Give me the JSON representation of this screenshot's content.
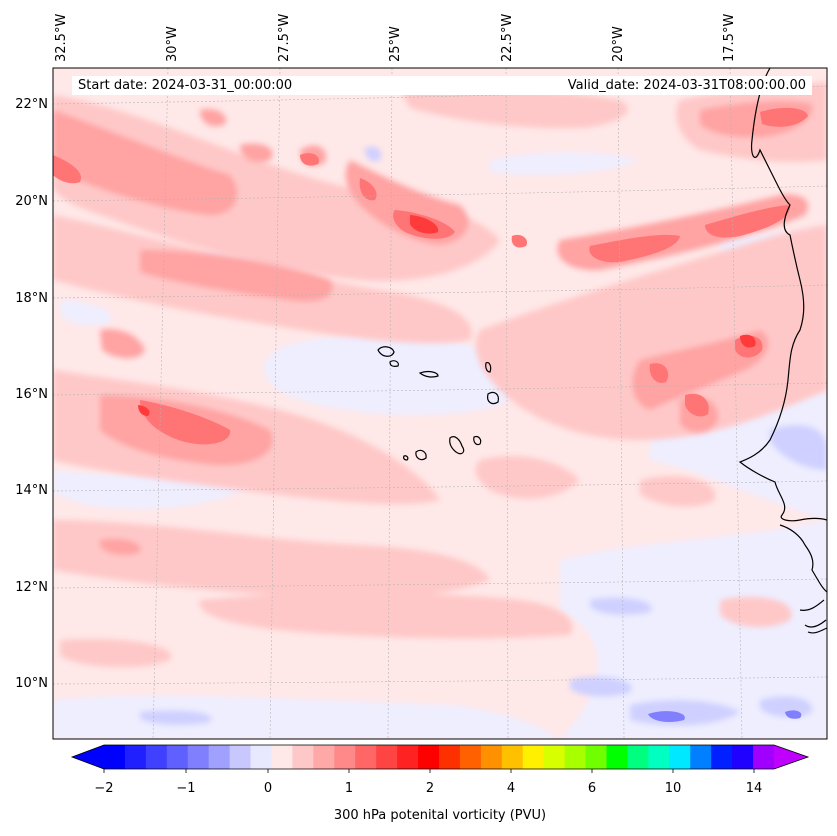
{
  "header": {
    "start_date": "Start date: 2024-03-31_00:00:00",
    "valid_date": "Valid_date: 2024-03-31T08:00:00.00"
  },
  "axes": {
    "lon_labels": [
      "32.5°W",
      "30°W",
      "27.5°W",
      "25°W",
      "22.5°W",
      "20°W",
      "17.5°W"
    ],
    "lat_labels": [
      "22°N",
      "20°N",
      "18°N",
      "16°N",
      "14°N",
      "12°N",
      "10°N"
    ],
    "gridlines": true
  },
  "colorbar": {
    "title": "300 hPa potenital vorticity (PVU)",
    "tick_labels": [
      "−2",
      "−1",
      "0",
      "1",
      "2",
      "4",
      "6",
      "10",
      "14"
    ],
    "levels": [
      -2,
      -1.75,
      -1.5,
      -1.25,
      -1,
      -0.75,
      -0.5,
      -0.25,
      0,
      0.25,
      0.5,
      0.75,
      1,
      1.25,
      1.5,
      1.75,
      2,
      2.5,
      3,
      3.5,
      4,
      4.5,
      5,
      5.5,
      6,
      7,
      8,
      9,
      10,
      11,
      12,
      13,
      14
    ],
    "colors": [
      "#0000ff",
      "#2020ff",
      "#4040ff",
      "#6060ff",
      "#8080ff",
      "#a0a0ff",
      "#c8c8ff",
      "#e8e8ff",
      "#ffe8e8",
      "#ffc8c8",
      "#ffa8a8",
      "#ff8888",
      "#ff6666",
      "#ff4444",
      "#ff2222",
      "#ff0000",
      "#ff3000",
      "#ff6000",
      "#ff9000",
      "#ffc000",
      "#fff000",
      "#d8ff00",
      "#a8ff00",
      "#70ff00",
      "#00ff00",
      "#00ff80",
      "#00ffc0",
      "#00e8ff",
      "#0080ff",
      "#0020ff",
      "#2000ff",
      "#a000ff"
    ],
    "under_color": "#0000ff",
    "over_color": "#c000ff"
  },
  "field": {
    "background_color": "#ffe8e8",
    "palette": {
      "neg_light": "#eeeeff",
      "neg_mid": "#cfd0ff",
      "neg_strong": "#8080ff",
      "pos_light": "#ffc8c8",
      "pos_mid": "#ffa3a3",
      "pos_strong": "#ff7474",
      "pos_max": "#ff3a3a"
    },
    "coastline_color": "#000000"
  }
}
